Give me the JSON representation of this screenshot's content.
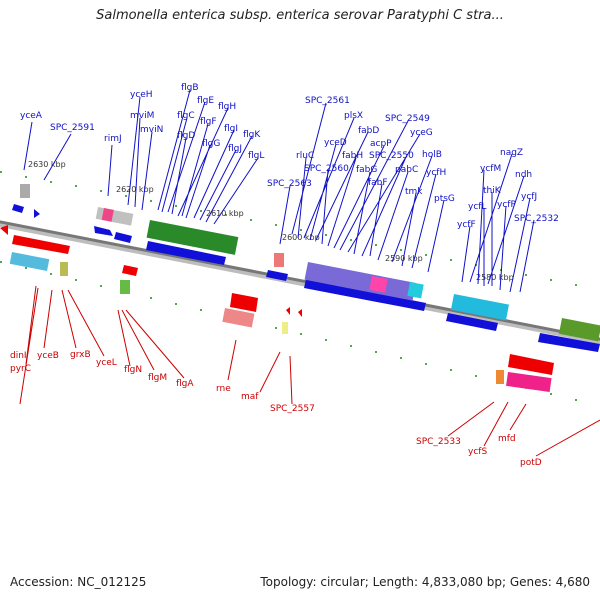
{
  "header": {
    "title": "Salmonella enterica subsp. enterica serovar Paratyphi C stra..."
  },
  "footer": {
    "accession": "Accession: NC_012125",
    "summary": "Topology: circular; Length: 4,833,080 bp; Genes: 4,680"
  },
  "ticks": [
    "2630 kbp",
    "2620 kbp",
    "2610 kbp",
    "2600 kbp",
    "2590 kbp",
    "2580 kbp"
  ],
  "forward_genes": [
    "yceA",
    "SPC_2591",
    "rimJ",
    "yceH",
    "mviM",
    "mviN",
    "flgB",
    "flgC",
    "flgE",
    "flgD",
    "flgH",
    "flgF",
    "flgG",
    "flgI",
    "flgJ",
    "flgK",
    "flgL",
    "SPC_2561",
    "rluC",
    "plsX",
    "yceD",
    "fabD",
    "SPC_2560",
    "fabH",
    "acpP",
    "SPC_2549",
    "yceG",
    "SPC_2563",
    "fabG",
    "SPC_2550",
    "fabF",
    "pabC",
    "holB",
    "tmk",
    "ycfH",
    "ptsG",
    "nagZ",
    "ycfM",
    "ndh",
    "thiK",
    "ycfL",
    "ycfP",
    "ycfJ",
    "ycfF",
    "SPC_2532"
  ],
  "reverse_genes": [
    "dinI",
    "pyrC",
    "yceB",
    "grxB",
    "yceL",
    "flgN",
    "flgM",
    "flgA",
    "rne",
    "maf",
    "SPC_2557",
    "SPC_2533",
    "ycfS",
    "mfd",
    "potD"
  ],
  "colors": {
    "forward": "#1010c8",
    "reverse": "#cc0000",
    "backbone": "#888888"
  }
}
